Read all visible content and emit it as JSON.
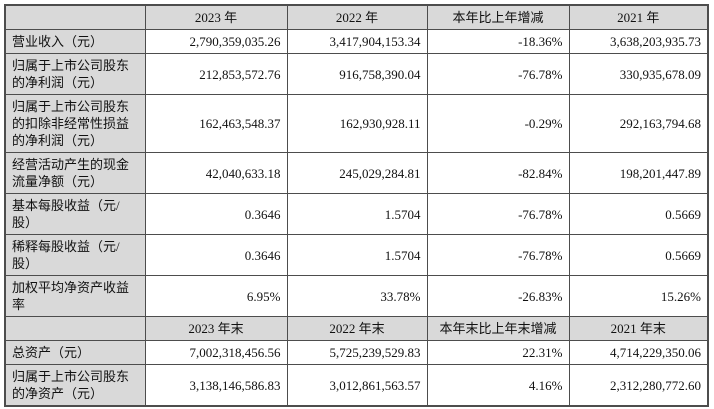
{
  "colors": {
    "header_bg": "#d9d9d9",
    "label_bg": "#d9d9d9",
    "border": "#4d4d4d",
    "text": "#111111",
    "page_bg": "#ffffff"
  },
  "table": {
    "sections": [
      {
        "header": {
          "label": "",
          "cols": [
            "2023 年",
            "2022 年",
            "本年比上年增减",
            "2021 年"
          ]
        },
        "rows": [
          {
            "label": "营业收入（元）",
            "values": [
              "2,790,359,035.26",
              "3,417,904,153.34",
              "-18.36%",
              "3,638,203,935.73"
            ]
          },
          {
            "label": "归属于上市公司股东的净利润（元）",
            "values": [
              "212,853,572.76",
              "916,758,390.04",
              "-76.78%",
              "330,935,678.09"
            ]
          },
          {
            "label": "归属于上市公司股东的扣除非经常性损益的净利润（元）",
            "values": [
              "162,463,548.37",
              "162,930,928.11",
              "-0.29%",
              "292,163,794.68"
            ]
          },
          {
            "label": "经营活动产生的现金流量净额（元）",
            "values": [
              "42,040,633.18",
              "245,029,284.81",
              "-82.84%",
              "198,201,447.89"
            ]
          },
          {
            "label": "基本每股收益（元/股）",
            "values": [
              "0.3646",
              "1.5704",
              "-76.78%",
              "0.5669"
            ]
          },
          {
            "label": "稀释每股收益（元/股）",
            "values": [
              "0.3646",
              "1.5704",
              "-76.78%",
              "0.5669"
            ]
          },
          {
            "label": "加权平均净资产收益率",
            "values": [
              "6.95%",
              "33.78%",
              "-26.83%",
              "15.26%"
            ]
          }
        ]
      },
      {
        "header": {
          "label": "",
          "cols": [
            "2023 年末",
            "2022 年末",
            "本年末比上年末增减",
            "2021 年末"
          ]
        },
        "rows": [
          {
            "label": "总资产（元）",
            "values": [
              "7,002,318,456.56",
              "5,725,239,529.83",
              "22.31%",
              "4,714,229,350.06"
            ]
          },
          {
            "label": "归属于上市公司股东的净资产（元）",
            "values": [
              "3,138,146,586.83",
              "3,012,861,563.57",
              "4.16%",
              "2,312,280,772.60"
            ]
          }
        ]
      }
    ]
  }
}
